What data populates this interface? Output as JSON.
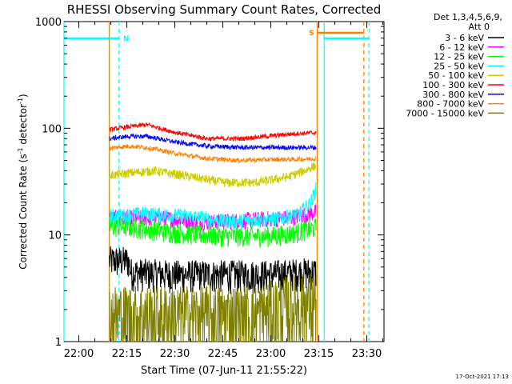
{
  "chart_data": {
    "type": "line",
    "title": "RHESSI Observing Summary Count Rates, Corrected",
    "xlabel": "Start Time (07-Jun-11 21:55:22)",
    "ylabel_main": "Corrected Count Rate (s",
    "ylabel_sup1": "-1",
    "ylabel_mid": " detector",
    "ylabel_sup2": "-1",
    "ylabel_end": ")",
    "yscale": "log",
    "ylim": [
      1,
      1000
    ],
    "yticks": [
      1,
      10,
      100,
      1000
    ],
    "ytick_labels": [
      "1",
      "10",
      "100",
      "1000"
    ],
    "x_unit": "minutes after 21:55:22",
    "xlim": [
      0,
      100
    ],
    "xticks": [
      4.63,
      19.63,
      34.63,
      49.63,
      64.63,
      79.63,
      94.63
    ],
    "xtick_labels": [
      "22:00",
      "22:15",
      "22:30",
      "22:45",
      "23:00",
      "23:15",
      "23:30"
    ],
    "legend_header": [
      "Det 1,3,4,5,6,9,",
      "Att 0"
    ],
    "legend_position": "right, outside plot",
    "data_interval": [
      14.2,
      78.8
    ],
    "series": [
      {
        "name": "3 - 6 keV",
        "color": "#000000",
        "t": [
          14.2,
          20,
          21,
          35,
          50,
          65,
          78.8
        ],
        "v": [
          5.8,
          5.8,
          4.5,
          4.3,
          4.3,
          4.3,
          4.6
        ]
      },
      {
        "name": "6 - 12 keV",
        "color": "#ff00ff",
        "t": [
          14.2,
          30,
          45,
          60,
          70,
          75,
          78.8
        ],
        "v": [
          14.5,
          14.5,
          13.2,
          14.0,
          14.5,
          15.5,
          16.5
        ]
      },
      {
        "name": "12 - 25 keV",
        "color": "#00ff00",
        "t": [
          14.2,
          20,
          35,
          50,
          65,
          72,
          78.8
        ],
        "v": [
          12.0,
          12.0,
          10.5,
          9.8,
          9.8,
          10.5,
          11.8
        ]
      },
      {
        "name": "25 - 50 keV",
        "color": "#00ffff",
        "t": [
          14.2,
          25,
          40,
          50,
          65,
          73,
          77,
          78.8
        ],
        "v": [
          15.0,
          16.0,
          15.0,
          13.5,
          14.0,
          15.5,
          20,
          27
        ]
      },
      {
        "name": "50 - 100 keV",
        "color": "#cccc00",
        "t": [
          14.2,
          20,
          28,
          40,
          50,
          60,
          70,
          75,
          78.8
        ],
        "v": [
          36,
          38,
          40,
          35,
          31,
          31,
          35,
          40,
          45
        ]
      },
      {
        "name": "100 - 300 keV",
        "color": "#ff0000",
        "t": [
          14.2,
          20,
          26,
          35,
          45,
          55,
          65,
          72,
          78.8
        ],
        "v": [
          97,
          103,
          108,
          91,
          80,
          80,
          85,
          89,
          91
        ]
      },
      {
        "name": "300 - 800 keV",
        "color": "#0000ff",
        "t": [
          14.2,
          20,
          26,
          35,
          45,
          55,
          65,
          72,
          78.8
        ],
        "v": [
          80,
          84,
          84,
          74,
          68,
          66,
          66,
          66,
          66
        ]
      },
      {
        "name": "800 - 7000 keV",
        "color": "#ff8000",
        "t": [
          14.2,
          20,
          26,
          35,
          45,
          55,
          65,
          72,
          78.8
        ],
        "v": [
          65,
          68,
          66,
          58,
          52,
          50,
          51,
          51,
          52
        ]
      },
      {
        "name": "7000 - 15000 keV",
        "color": "#808000",
        "t": [
          14.2,
          20,
          40,
          60,
          70,
          78.8
        ],
        "v": [
          1.8,
          1.8,
          1.8,
          1.8,
          2.2,
          2.4
        ]
      }
    ],
    "markers": [
      {
        "kind": "saa",
        "label": "",
        "color": "#00ffff",
        "style": "solid",
        "t": 0
      },
      {
        "kind": "saa",
        "label": "",
        "color": "#00ffff",
        "style": "solid",
        "t": 14.1
      },
      {
        "kind": "night",
        "label": "N",
        "color": "#00ffff",
        "style": "dashed",
        "t": 17.2
      },
      {
        "kind": "flare",
        "label": "",
        "color": "#ff8000",
        "style": "solid",
        "t": 14.2
      },
      {
        "kind": "flare",
        "label": "S",
        "color": "#ff8000",
        "style": "solid",
        "t": 79.1
      },
      {
        "kind": "saa",
        "label": "",
        "color": "#00ffff",
        "style": "solid",
        "t": 81.3
      },
      {
        "kind": "flare",
        "label": "",
        "color": "#ff8000",
        "style": "dashed",
        "t": 93.7
      },
      {
        "kind": "night",
        "label": "",
        "color": "#00ffff",
        "style": "dashed",
        "t": 95.3
      }
    ],
    "bars": [
      {
        "label": "N",
        "color": "#00ffff",
        "t0": 0,
        "t1": 17.2
      },
      {
        "label": "S",
        "color": "#ff8000",
        "t0": 79.1,
        "t1": 93.7
      },
      {
        "label": "",
        "color": "#00ffff",
        "t0": 81.3,
        "t1": 95.3
      }
    ]
  },
  "footer_date": "17-Oct-2021 17:13"
}
